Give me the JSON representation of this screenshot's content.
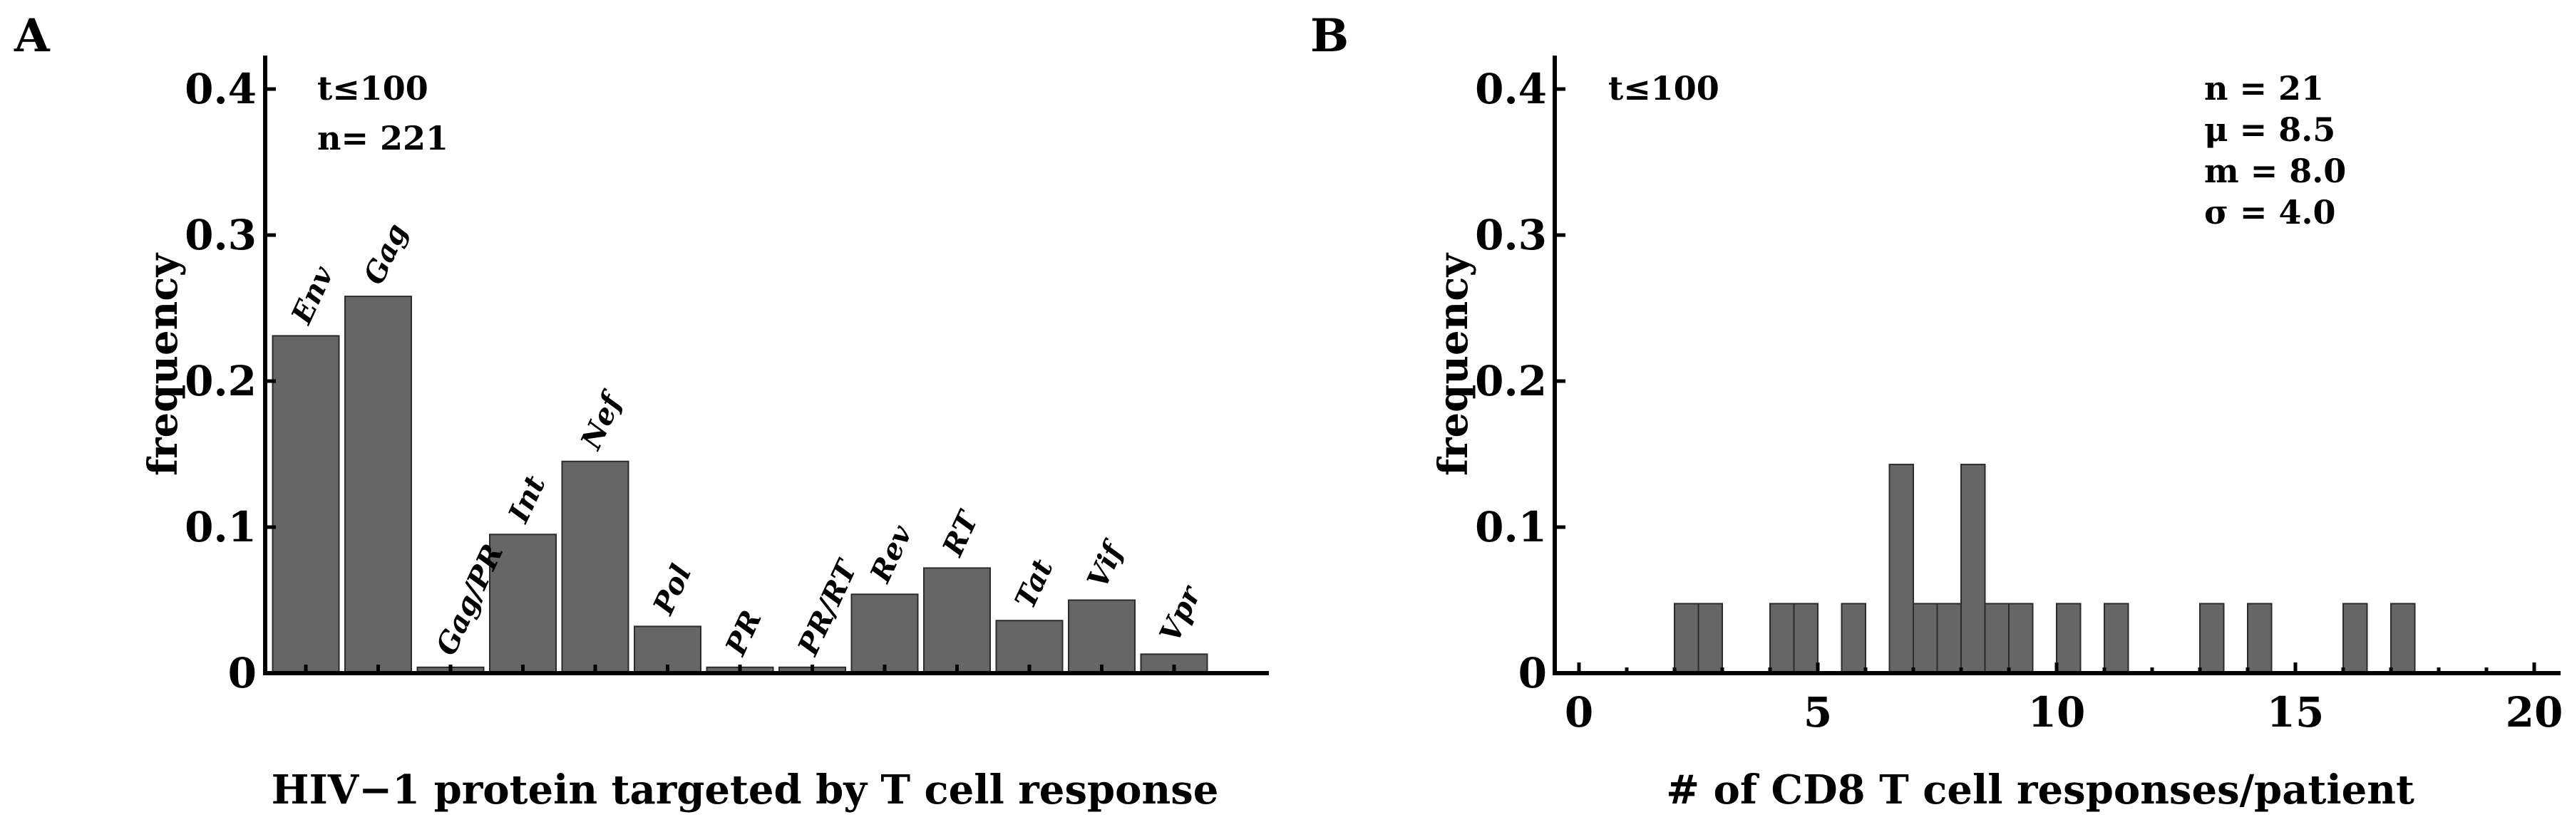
{
  "chart_data": [
    {
      "panel": "A",
      "type": "bar",
      "title": "",
      "xlabel": "HIV−1 protein targeted by T cell response",
      "ylabel": "frequency",
      "ylim": [
        0,
        0.42
      ],
      "yticks": [
        "0",
        "0.1",
        "0.2",
        "0.3",
        "0.4"
      ],
      "annotations": [
        "t≤100",
        "n= 221"
      ],
      "categories": [
        "Env",
        "Gag",
        "Gag/PR",
        "Int",
        "Nef",
        "Pol",
        "PR",
        "PR/RT",
        "Rev",
        "RT",
        "Tat",
        "Vif",
        "Vpr"
      ],
      "values": [
        0.231,
        0.258,
        0.004,
        0.095,
        0.145,
        0.032,
        0.004,
        0.004,
        0.054,
        0.072,
        0.036,
        0.05,
        0.013
      ]
    },
    {
      "panel": "B",
      "type": "bar",
      "title": "",
      "xlabel": "# of CD8 T cell responses/patient",
      "ylabel": "frequency",
      "xlim": [
        0,
        20
      ],
      "ylim": [
        0,
        0.42
      ],
      "xticks": [
        "0",
        "5",
        "10",
        "15",
        "20"
      ],
      "yticks": [
        "0",
        "0.1",
        "0.2",
        "0.3",
        "0.4"
      ],
      "annotations": [
        "t≤100"
      ],
      "stats": [
        "n = 21",
        "μ = 8.5",
        "m = 8.0",
        "σ = 4.0"
      ],
      "bins": [
        2,
        2.5,
        4,
        4.5,
        5.5,
        6.5,
        7,
        7.5,
        8,
        8.5,
        9,
        10,
        11,
        13,
        14,
        16,
        17
      ],
      "bin_width": 0.5,
      "values": [
        0.0476,
        0.0476,
        0.0476,
        0.0476,
        0.0476,
        0.1429,
        0.0476,
        0.0476,
        0.1429,
        0.0476,
        0.0476,
        0.0476,
        0.0476,
        0.0476,
        0.0476,
        0.0476,
        0.0476
      ]
    }
  ]
}
